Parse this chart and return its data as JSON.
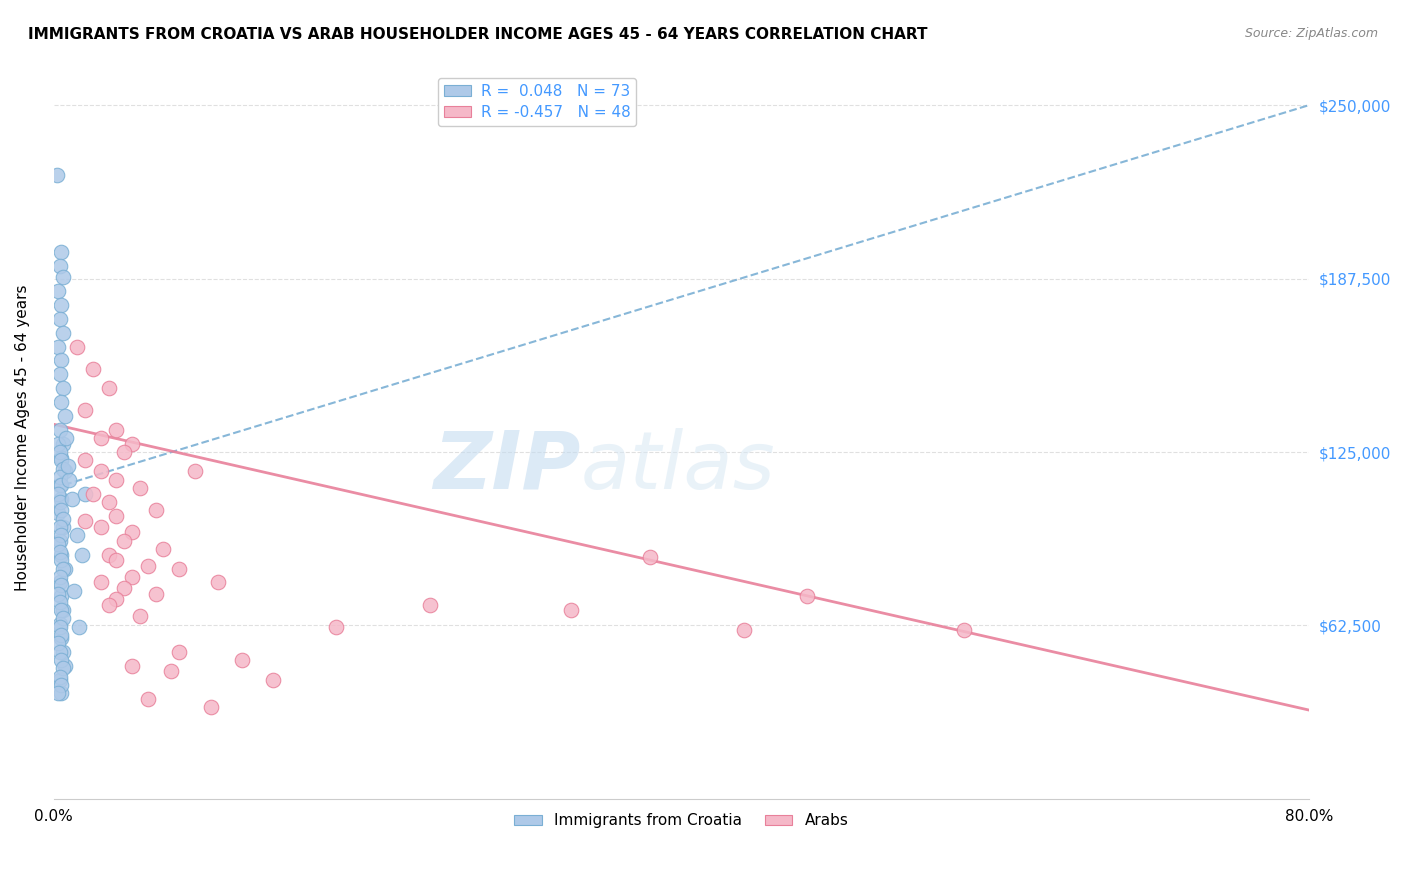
{
  "title": "IMMIGRANTS FROM CROATIA VS ARAB HOUSEHOLDER INCOME AGES 45 - 64 YEARS CORRELATION CHART",
  "source": "Source: ZipAtlas.com",
  "ylabel": "Householder Income Ages 45 - 64 years",
  "ytick_labels": [
    "$62,500",
    "$125,000",
    "$187,500",
    "$250,000"
  ],
  "ytick_values": [
    62500,
    125000,
    187500,
    250000
  ],
  "xlim": [
    0.0,
    80.0
  ],
  "ylim": [
    0,
    260000
  ],
  "legend_entries": [
    {
      "label": "R =  0.048   N = 73",
      "facecolor": "#aec9e8",
      "edgecolor": "#7aafd4"
    },
    {
      "label": "R = -0.457   N = 48",
      "facecolor": "#f5b8c8",
      "edgecolor": "#e8809a"
    }
  ],
  "blue_dot_color": "#aec9e8",
  "blue_dot_edge": "#7aafd4",
  "pink_dot_color": "#f5b8c8",
  "pink_dot_edge": "#e8809a",
  "blue_line_color": "#7aafd4",
  "pink_line_color": "#e8809a",
  "blue_line": {
    "x0": 0,
    "y0": 112000,
    "x1": 80,
    "y1": 250000
  },
  "pink_line": {
    "x0": 0,
    "y0": 135000,
    "x1": 80,
    "y1": 32000
  },
  "croatia_scatter": [
    [
      0.2,
      225000
    ],
    [
      0.5,
      197000
    ],
    [
      0.4,
      192000
    ],
    [
      0.6,
      188000
    ],
    [
      0.3,
      183000
    ],
    [
      0.5,
      178000
    ],
    [
      0.4,
      173000
    ],
    [
      0.6,
      168000
    ],
    [
      0.3,
      163000
    ],
    [
      0.5,
      158000
    ],
    [
      0.4,
      153000
    ],
    [
      0.6,
      148000
    ],
    [
      0.5,
      143000
    ],
    [
      0.7,
      138000
    ],
    [
      0.4,
      133000
    ],
    [
      0.6,
      128000
    ],
    [
      0.5,
      123000
    ],
    [
      0.7,
      118000
    ],
    [
      0.4,
      113000
    ],
    [
      0.5,
      108000
    ],
    [
      0.3,
      103000
    ],
    [
      0.6,
      98000
    ],
    [
      0.4,
      93000
    ],
    [
      0.5,
      88000
    ],
    [
      0.7,
      83000
    ],
    [
      0.4,
      78000
    ],
    [
      0.5,
      73000
    ],
    [
      0.6,
      68000
    ],
    [
      0.4,
      63000
    ],
    [
      0.5,
      58000
    ],
    [
      0.6,
      53000
    ],
    [
      0.7,
      48000
    ],
    [
      0.4,
      43000
    ],
    [
      0.5,
      38000
    ],
    [
      0.3,
      128000
    ],
    [
      0.4,
      125000
    ],
    [
      0.5,
      122000
    ],
    [
      0.6,
      119000
    ],
    [
      0.4,
      116000
    ],
    [
      0.5,
      113000
    ],
    [
      0.3,
      110000
    ],
    [
      0.4,
      107000
    ],
    [
      0.5,
      104000
    ],
    [
      0.6,
      101000
    ],
    [
      0.4,
      98000
    ],
    [
      0.5,
      95000
    ],
    [
      0.3,
      92000
    ],
    [
      0.4,
      89000
    ],
    [
      0.5,
      86000
    ],
    [
      0.6,
      83000
    ],
    [
      0.4,
      80000
    ],
    [
      0.5,
      77000
    ],
    [
      0.3,
      74000
    ],
    [
      0.4,
      71000
    ],
    [
      0.5,
      68000
    ],
    [
      0.6,
      65000
    ],
    [
      0.4,
      62000
    ],
    [
      0.5,
      59000
    ],
    [
      0.3,
      56000
    ],
    [
      0.4,
      53000
    ],
    [
      0.5,
      50000
    ],
    [
      0.6,
      47000
    ],
    [
      0.4,
      44000
    ],
    [
      0.5,
      41000
    ],
    [
      0.3,
      38000
    ],
    [
      1.0,
      115000
    ],
    [
      1.2,
      108000
    ],
    [
      1.5,
      95000
    ],
    [
      1.8,
      88000
    ],
    [
      2.0,
      110000
    ],
    [
      1.3,
      75000
    ],
    [
      1.6,
      62000
    ],
    [
      0.8,
      130000
    ],
    [
      0.9,
      120000
    ]
  ],
  "arab_scatter": [
    [
      1.5,
      163000
    ],
    [
      2.5,
      155000
    ],
    [
      3.5,
      148000
    ],
    [
      2.0,
      140000
    ],
    [
      4.0,
      133000
    ],
    [
      3.0,
      130000
    ],
    [
      5.0,
      128000
    ],
    [
      4.5,
      125000
    ],
    [
      2.0,
      122000
    ],
    [
      3.0,
      118000
    ],
    [
      4.0,
      115000
    ],
    [
      5.5,
      112000
    ],
    [
      2.5,
      110000
    ],
    [
      3.5,
      107000
    ],
    [
      9.0,
      118000
    ],
    [
      6.5,
      104000
    ],
    [
      4.0,
      102000
    ],
    [
      2.0,
      100000
    ],
    [
      3.0,
      98000
    ],
    [
      5.0,
      96000
    ],
    [
      4.5,
      93000
    ],
    [
      7.0,
      90000
    ],
    [
      3.5,
      88000
    ],
    [
      4.0,
      86000
    ],
    [
      6.0,
      84000
    ],
    [
      8.0,
      83000
    ],
    [
      5.0,
      80000
    ],
    [
      3.0,
      78000
    ],
    [
      4.5,
      76000
    ],
    [
      6.5,
      74000
    ],
    [
      10.5,
      78000
    ],
    [
      4.0,
      72000
    ],
    [
      3.5,
      70000
    ],
    [
      5.5,
      66000
    ],
    [
      18.0,
      62000
    ],
    [
      38.0,
      87000
    ],
    [
      48.0,
      73000
    ],
    [
      8.0,
      53000
    ],
    [
      12.0,
      50000
    ],
    [
      5.0,
      48000
    ],
    [
      7.5,
      46000
    ],
    [
      14.0,
      43000
    ],
    [
      24.0,
      70000
    ],
    [
      33.0,
      68000
    ],
    [
      6.0,
      36000
    ],
    [
      10.0,
      33000
    ],
    [
      44.0,
      61000
    ],
    [
      58.0,
      61000
    ]
  ],
  "legend_top": {
    "label1": "R =  0.048   N = 73",
    "label2": "R = -0.457   N = 48"
  },
  "bottom_legend": {
    "label1": "Immigrants from Croatia",
    "label2": "Arabs"
  },
  "watermark_zip_color": "#c5dcf0",
  "watermark_atlas_color": "#c5dcf0",
  "grid_color": "#e0e0e0",
  "title_fontsize": 11,
  "label_fontsize": 11,
  "tick_fontsize": 11,
  "right_tick_color": "#4499ff"
}
